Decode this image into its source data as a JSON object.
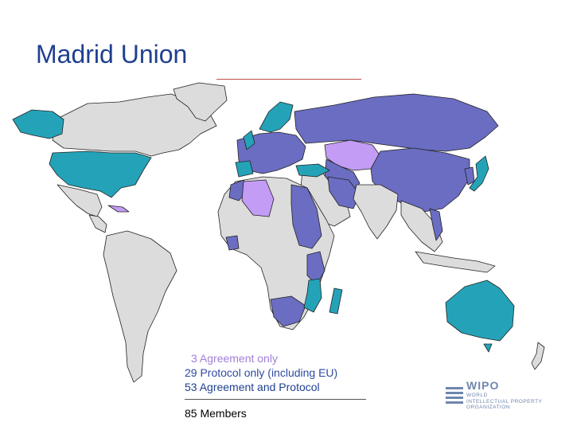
{
  "title": "Madrid Union",
  "legend": {
    "items": [
      {
        "label": "3 Agreement only",
        "color": "#a07fd6"
      },
      {
        "label": "29 Protocol only (including EU)",
        "color": "#2e4aa0"
      },
      {
        "label": "53 Agreement and Protocol",
        "color": "#1f3f8f"
      }
    ],
    "total": "85 Members"
  },
  "colors": {
    "agreement_only": "#c39cf5",
    "protocol_only": "#24a3b8",
    "agreement_and_protocol": "#6b6dc2",
    "non_member": "#dcdcdc",
    "border": "#222222"
  },
  "logo": {
    "name": "WIPO",
    "lines": [
      "WORLD",
      "INTELLECTUAL PROPERTY",
      "ORGANIZATION"
    ]
  }
}
